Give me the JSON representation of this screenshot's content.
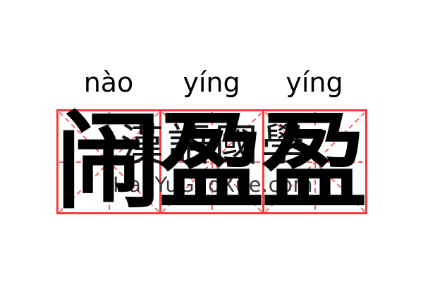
{
  "word": {
    "pinyin": [
      "nào",
      "yíng",
      "yíng"
    ],
    "characters": [
      "闹",
      "盈",
      "盈"
    ]
  },
  "watermark": {
    "hanzi_text": "漢語國學",
    "site_text": "HanYuGuoXue.com"
  },
  "colors": {
    "background": "#ffffff",
    "grid_border": "#f43b3b",
    "grid_dash": "#f16262",
    "character_ink": "#000000",
    "watermark_hanzi": "#141414",
    "watermark_site": "#3c3c3c"
  }
}
